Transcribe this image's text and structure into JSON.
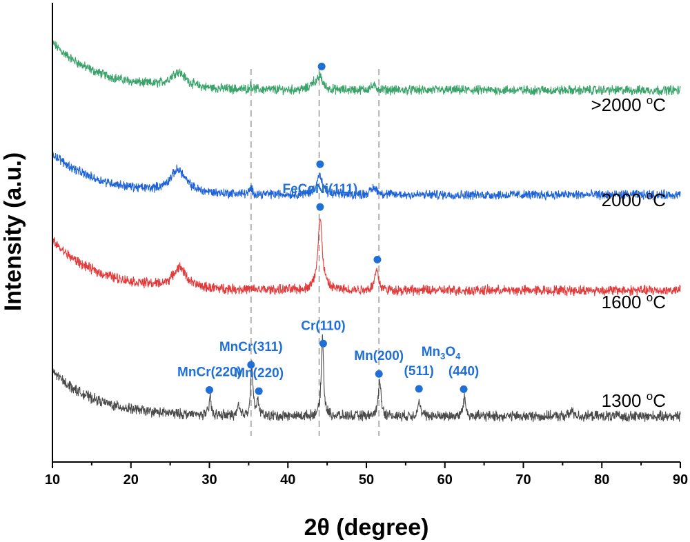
{
  "chart_data": {
    "type": "line",
    "xlabel": "2θ (degree)",
    "ylabel": "Intensity (a.u.)",
    "xlim": [
      10,
      90
    ],
    "x_ticks": [
      10,
      20,
      30,
      40,
      50,
      60,
      70,
      80,
      90
    ],
    "y_ticks": false,
    "grid": false,
    "reference_lines": [
      35.3,
      44.0,
      51.6
    ],
    "marker_color": "#1f6fd6",
    "series": [
      {
        "name": ">2000 °C",
        "label_main": ">2000 ",
        "label_unit": "C",
        "label_sup": "o",
        "color": "#3aa36a",
        "baseline": 0.46,
        "background_start": 0.62,
        "background_decay": 5.8,
        "noise": 0.05,
        "peaks": [
          {
            "x": 26.0,
            "height": 0.2,
            "width": 1.2
          },
          {
            "x": 35.3,
            "height": 0.05,
            "width": 0.2
          },
          {
            "x": 43.2,
            "height": 0.09,
            "width": 0.35
          },
          {
            "x": 44.1,
            "height": 0.17,
            "width": 0.4
          },
          {
            "x": 50.9,
            "height": 0.05,
            "width": 0.5
          }
        ],
        "markers": [
          44.3
        ]
      },
      {
        "name": "2000 °C",
        "label_main": "2000 ",
        "label_unit": "C",
        "label_sup": "o",
        "color": "#1f63d8",
        "baseline": 0.36,
        "background_start": 0.55,
        "background_decay": 5.8,
        "noise": 0.05,
        "peaks": [
          {
            "x": 26.0,
            "height": 0.3,
            "width": 1.2
          },
          {
            "x": 35.3,
            "height": 0.07,
            "width": 0.2
          },
          {
            "x": 44.0,
            "height": 0.25,
            "width": 0.45
          },
          {
            "x": 51.0,
            "height": 0.09,
            "width": 0.5
          }
        ],
        "markers": [
          44.1
        ]
      },
      {
        "name": "1600 °C",
        "label_main": "1600 ",
        "label_unit": "C",
        "label_sup": "o",
        "color": "#e23b3b",
        "baseline": 0.42,
        "background_start": 0.62,
        "background_decay": 5.8,
        "noise": 0.05,
        "peaks": [
          {
            "x": 26.2,
            "height": 0.25,
            "width": 1.0
          },
          {
            "x": 44.1,
            "height": 0.88,
            "width": 0.35
          },
          {
            "x": 51.3,
            "height": 0.25,
            "width": 0.3
          }
        ],
        "markers": [
          44.1,
          51.4
        ],
        "peak_labels": [
          {
            "text": "FeCoNi(111)",
            "x": 44.1
          }
        ]
      },
      {
        "name": "1300 °C",
        "label_main": "1300 ",
        "label_unit": "C",
        "label_sup": "o",
        "color": "#4a4a4a",
        "baseline": 0.12,
        "background_start": 0.55,
        "background_decay": 5.5,
        "noise": 0.05,
        "peaks": [
          {
            "x": 30.1,
            "height": 0.22,
            "width": 0.15
          },
          {
            "x": 33.7,
            "height": 0.12,
            "width": 0.15
          },
          {
            "x": 35.4,
            "height": 0.6,
            "width": 0.18
          },
          {
            "x": 36.2,
            "height": 0.18,
            "width": 0.15
          },
          {
            "x": 44.4,
            "height": 0.95,
            "width": 0.18
          },
          {
            "x": 51.7,
            "height": 0.45,
            "width": 0.2
          },
          {
            "x": 56.7,
            "height": 0.18,
            "width": 0.2
          },
          {
            "x": 62.5,
            "height": 0.22,
            "width": 0.2
          },
          {
            "x": 76.2,
            "height": 0.06,
            "width": 0.3
          }
        ],
        "markers": [
          30.0,
          35.3,
          36.3,
          44.5,
          51.6,
          56.7,
          62.4
        ],
        "peak_labels": [
          {
            "text": "MnCr(220)",
            "x": 30.0
          },
          {
            "text": "MnCr(311)",
            "x": 35.3
          },
          {
            "text": "Mn(220)",
            "x": 36.3
          },
          {
            "text": "Cr(110)",
            "x": 44.5
          },
          {
            "text": "Mn(200)",
            "x": 51.6
          },
          {
            "text": "(511)",
            "x": 56.7
          },
          {
            "text": "(440)",
            "x": 62.4
          }
        ],
        "compound_label": {
          "prefix": "Mn",
          "sub1": "3",
          "mid": "O",
          "sub2": "4",
          "x": 59.5
        }
      }
    ]
  }
}
